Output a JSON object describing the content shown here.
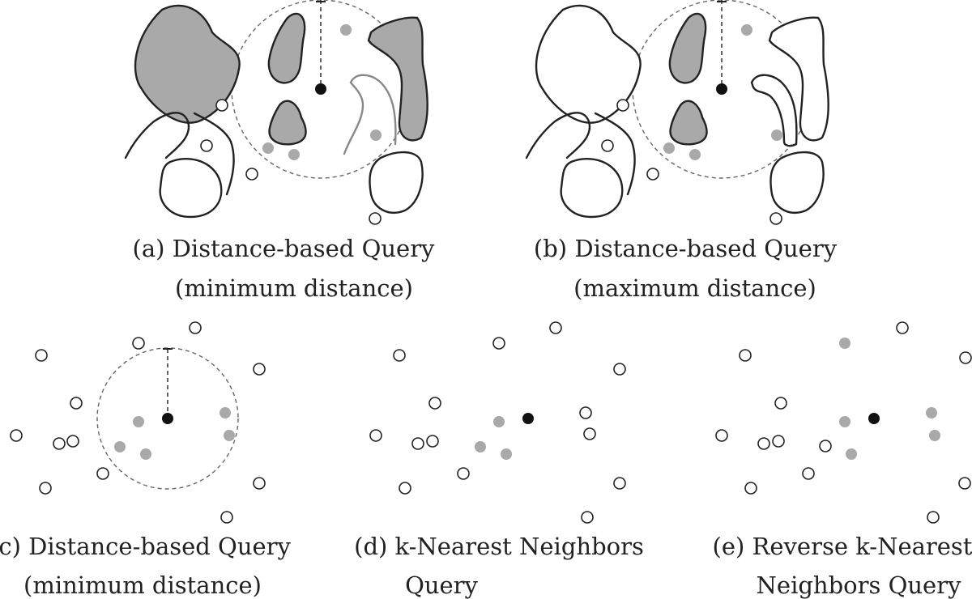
{
  "panels": [
    {
      "id": "a",
      "caption_line1": "(a) Distance-based Query",
      "caption_line2": "(minimum distance)"
    },
    {
      "id": "b",
      "caption_line1": "(b) Distance-based Query",
      "caption_line2": "(maximum distance)"
    },
    {
      "id": "c",
      "caption_line1": "(c) Distance-based Query",
      "caption_line2": "(minimum distance)"
    },
    {
      "id": "d",
      "caption_line1": "(d) k-Nearest Neighbors",
      "caption_line2": "Query"
    },
    {
      "id": "e",
      "caption_line1": "(e) Reverse k-Nearest",
      "caption_line2": "Neighbors Query"
    }
  ],
  "colors": {
    "result_fill": "#a9a9a9",
    "query_point": "#111111",
    "non_result": "#ffffff",
    "stroke": "#222222"
  }
}
